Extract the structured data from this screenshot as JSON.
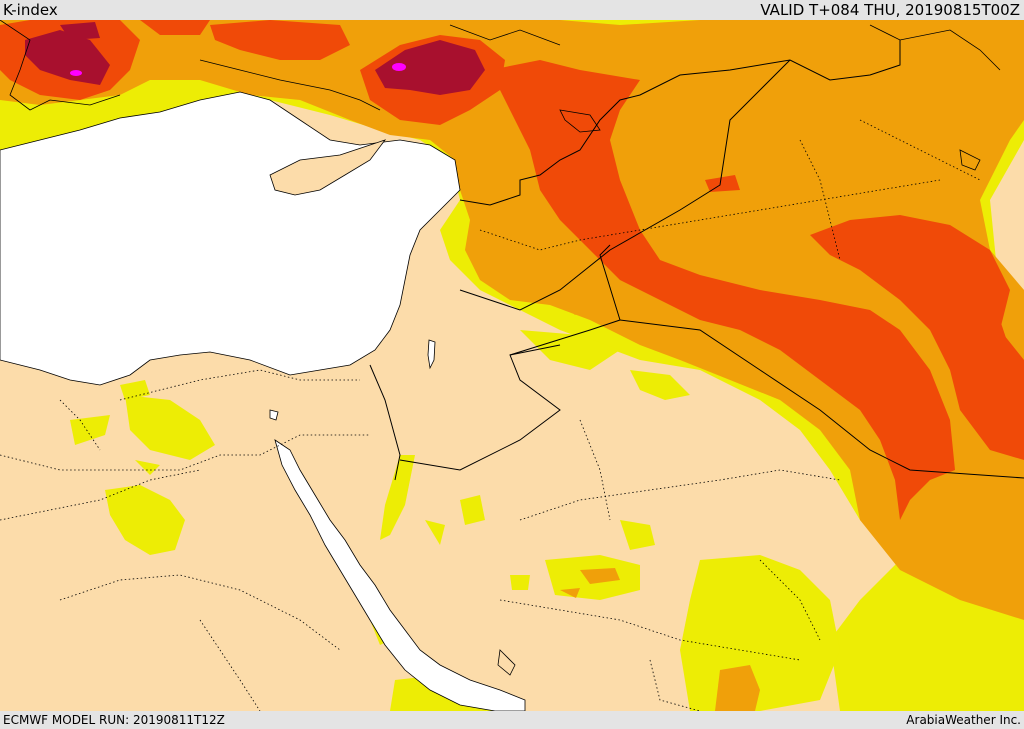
{
  "header": {
    "title": "K-index",
    "valid": "VALID T+084 THU, 20190815T00Z"
  },
  "footer": {
    "model_run": "ECMWF MODEL RUN: 20190811T12Z",
    "credit": "ArabiaWeather Inc."
  },
  "colors": {
    "land_low": "#fcdcaa",
    "yellow": "#eded05",
    "orange": "#f0a00a",
    "red_orange": "#f04a08",
    "dark_red": "#a8102e",
    "magenta": "#ff00ff",
    "water": "#ffffff",
    "border": "#000000"
  }
}
